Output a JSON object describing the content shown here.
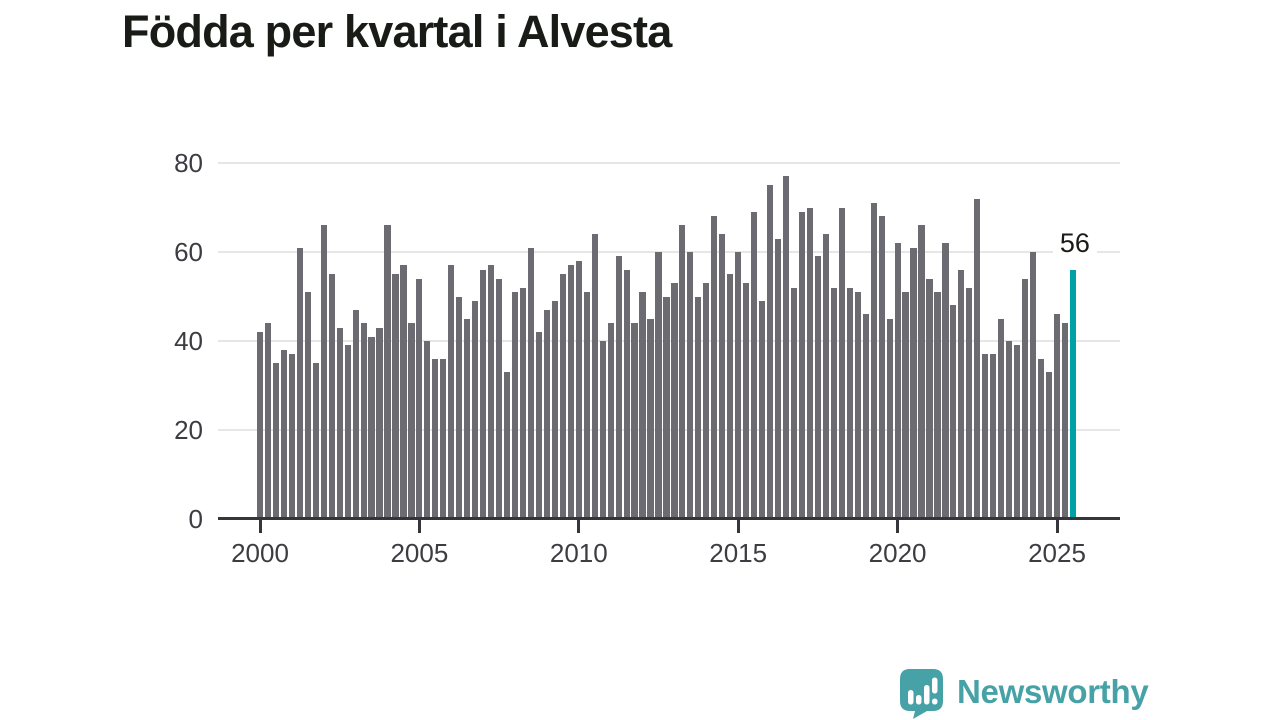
{
  "title": "Födda per kvartal i Alvesta",
  "brand": {
    "name": "Newsworthy"
  },
  "colors": {
    "background": "#ffffff",
    "bar": "#6b6b71",
    "highlight": "#00a1a4",
    "grid": "#e6e6e6",
    "axis": "#35353b",
    "tick_label": "#3c3c42",
    "title_text": "#191b16",
    "logo": "#46a2a6"
  },
  "chart_data": {
    "type": "bar",
    "title": "Födda per kvartal i Alvesta",
    "x_start": "2000 Q1",
    "x_end": "2025 Q3",
    "categories": [
      "2000 Q1",
      "2000 Q2",
      "2000 Q3",
      "2000 Q4",
      "2001 Q1",
      "2001 Q2",
      "2001 Q3",
      "2001 Q4",
      "2002 Q1",
      "2002 Q2",
      "2002 Q3",
      "2002 Q4",
      "2003 Q1",
      "2003 Q2",
      "2003 Q3",
      "2003 Q4",
      "2004 Q1",
      "2004 Q2",
      "2004 Q3",
      "2004 Q4",
      "2005 Q1",
      "2005 Q2",
      "2005 Q3",
      "2005 Q4",
      "2006 Q1",
      "2006 Q2",
      "2006 Q3",
      "2006 Q4",
      "2007 Q1",
      "2007 Q2",
      "2007 Q3",
      "2007 Q4",
      "2008 Q1",
      "2008 Q2",
      "2008 Q3",
      "2008 Q4",
      "2009 Q1",
      "2009 Q2",
      "2009 Q3",
      "2009 Q4",
      "2010 Q1",
      "2010 Q2",
      "2010 Q3",
      "2010 Q4",
      "2011 Q1",
      "2011 Q2",
      "2011 Q3",
      "2011 Q4",
      "2012 Q1",
      "2012 Q2",
      "2012 Q3",
      "2012 Q4",
      "2013 Q1",
      "2013 Q2",
      "2013 Q3",
      "2013 Q4",
      "2014 Q1",
      "2014 Q2",
      "2014 Q3",
      "2014 Q4",
      "2015 Q1",
      "2015 Q2",
      "2015 Q3",
      "2015 Q4",
      "2016 Q1",
      "2016 Q2",
      "2016 Q3",
      "2016 Q4",
      "2017 Q1",
      "2017 Q2",
      "2017 Q3",
      "2017 Q4",
      "2018 Q1",
      "2018 Q2",
      "2018 Q3",
      "2018 Q4",
      "2019 Q1",
      "2019 Q2",
      "2019 Q3",
      "2019 Q4",
      "2020 Q1",
      "2020 Q2",
      "2020 Q3",
      "2020 Q4",
      "2021 Q1",
      "2021 Q2",
      "2021 Q3",
      "2021 Q4",
      "2022 Q1",
      "2022 Q2",
      "2022 Q3",
      "2022 Q4",
      "2023 Q1",
      "2023 Q2",
      "2023 Q3",
      "2023 Q4",
      "2024 Q1",
      "2024 Q2",
      "2024 Q3",
      "2024 Q4",
      "2025 Q1",
      "2025 Q2",
      "2025 Q3"
    ],
    "values": [
      42,
      44,
      35,
      38,
      37,
      61,
      51,
      35,
      66,
      55,
      43,
      39,
      47,
      44,
      41,
      43,
      66,
      55,
      57,
      44,
      54,
      40,
      36,
      36,
      57,
      50,
      45,
      49,
      56,
      57,
      54,
      33,
      51,
      52,
      61,
      42,
      47,
      49,
      55,
      57,
      58,
      51,
      64,
      40,
      44,
      59,
      56,
      44,
      51,
      45,
      60,
      50,
      53,
      66,
      60,
      50,
      53,
      68,
      64,
      55,
      60,
      53,
      69,
      49,
      75,
      63,
      77,
      52,
      69,
      70,
      59,
      64,
      52,
      70,
      52,
      51,
      46,
      71,
      68,
      45,
      62,
      51,
      61,
      66,
      54,
      51,
      62,
      48,
      56,
      52,
      72,
      37,
      37,
      45,
      40,
      39,
      54,
      60,
      36,
      33,
      46,
      44,
      56
    ],
    "highlight_index": 102,
    "highlight_value_label": "56",
    "xticks": [
      "2000",
      "2005",
      "2010",
      "2015",
      "2020",
      "2025"
    ],
    "xtick_quarter_indices": [
      0,
      20,
      40,
      60,
      80,
      100
    ],
    "yticks": [
      0,
      20,
      40,
      60,
      80
    ],
    "ylim": [
      0,
      80
    ],
    "grid": "horizontal",
    "legend": "none",
    "bar_color": "#6b6b71",
    "highlight_color": "#00a1a4"
  }
}
